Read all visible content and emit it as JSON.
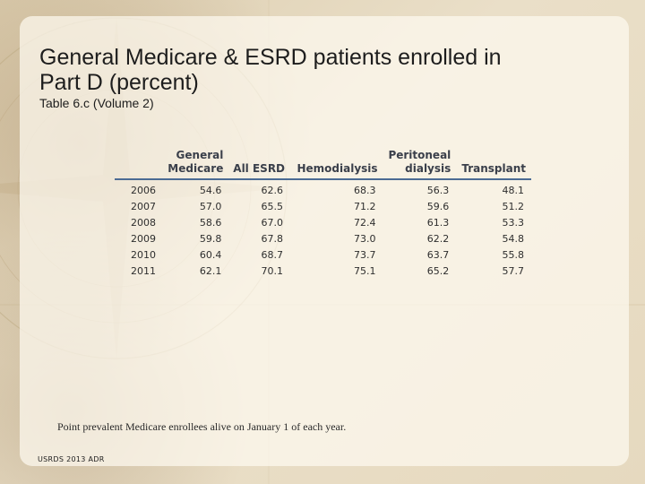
{
  "slide": {
    "title": "General Medicare & ESRD patients enrolled in Part D (percent)",
    "subtitle": "Table 6.c (Volume 2)",
    "note": "Point prevalent Medicare enrollees alive on January 1 of each year.",
    "source": "USRDS 2013 ADR"
  },
  "table": {
    "headers": {
      "year": "",
      "general_medicare_line1": "General",
      "general_medicare_line2": "Medicare",
      "all_esrd": "All ESRD",
      "hemodialysis": "Hemodialysis",
      "peritoneal_line1": "Peritoneal",
      "peritoneal_line2": "dialysis",
      "transplant": "Transplant"
    },
    "rows": [
      {
        "year": "2006",
        "general": "54.6",
        "all_esrd": "62.6",
        "hemo": "68.3",
        "pd": "56.3",
        "transplant": "48.1"
      },
      {
        "year": "2007",
        "general": "57.0",
        "all_esrd": "65.5",
        "hemo": "71.2",
        "pd": "59.6",
        "transplant": "51.2"
      },
      {
        "year": "2008",
        "general": "58.6",
        "all_esrd": "67.0",
        "hemo": "72.4",
        "pd": "61.3",
        "transplant": "53.3"
      },
      {
        "year": "2009",
        "general": "59.8",
        "all_esrd": "67.8",
        "hemo": "73.0",
        "pd": "62.2",
        "transplant": "54.8"
      },
      {
        "year": "2010",
        "general": "60.4",
        "all_esrd": "68.7",
        "hemo": "73.7",
        "pd": "63.7",
        "transplant": "55.8"
      },
      {
        "year": "2011",
        "general": "62.1",
        "all_esrd": "70.1",
        "hemo": "75.1",
        "pd": "65.2",
        "transplant": "57.7"
      }
    ]
  }
}
